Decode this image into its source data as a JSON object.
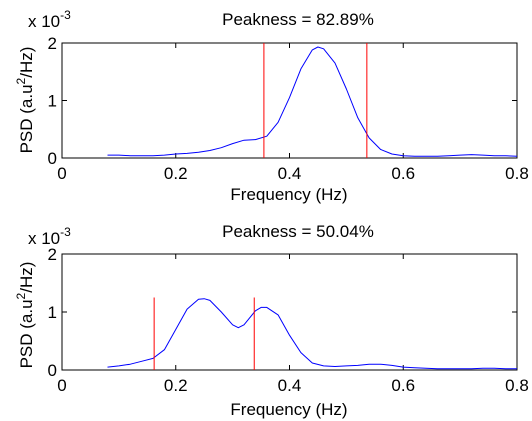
{
  "chart_data": [
    {
      "type": "line",
      "title": "Peakness = 82.89%",
      "xlabel": "Frequency (Hz)",
      "ylabel": {
        "pre": "PSD (a.u",
        "sup": "2",
        "post": "/Hz)"
      },
      "y_exponent": {
        "base": "x 10",
        "exp": "-3"
      },
      "xlim": [
        0,
        0.8
      ],
      "ylim": [
        0,
        2
      ],
      "x_ticks": [
        0,
        0.2,
        0.4,
        0.6,
        0.8
      ],
      "x_tick_labels": [
        "0",
        "0.2",
        "0.4",
        "0.6",
        "0.8"
      ],
      "y_ticks": [
        0,
        1,
        2
      ],
      "y_tick_labels": [
        "0",
        "1",
        "2"
      ],
      "grid": false,
      "series": [
        {
          "color": "#0000ff",
          "x": [
            0.08,
            0.1,
            0.12,
            0.14,
            0.16,
            0.18,
            0.2,
            0.22,
            0.24,
            0.26,
            0.28,
            0.3,
            0.32,
            0.34,
            0.36,
            0.38,
            0.4,
            0.42,
            0.44,
            0.45,
            0.46,
            0.48,
            0.5,
            0.52,
            0.54,
            0.56,
            0.58,
            0.6,
            0.62,
            0.64,
            0.66,
            0.68,
            0.7,
            0.72,
            0.74,
            0.76,
            0.78,
            0.8
          ],
          "y": [
            0.05,
            0.05,
            0.04,
            0.04,
            0.04,
            0.05,
            0.07,
            0.08,
            0.1,
            0.13,
            0.18,
            0.25,
            0.31,
            0.32,
            0.38,
            0.62,
            1.05,
            1.55,
            1.88,
            1.93,
            1.9,
            1.65,
            1.2,
            0.7,
            0.35,
            0.15,
            0.07,
            0.04,
            0.03,
            0.03,
            0.03,
            0.04,
            0.05,
            0.06,
            0.05,
            0.04,
            0.04,
            0.03
          ]
        }
      ],
      "markers": [
        {
          "x": 0.355,
          "ymax": 2.0,
          "color": "#ff0000"
        },
        {
          "x": 0.536,
          "ymax": 2.0,
          "color": "#ff0000"
        }
      ]
    },
    {
      "type": "line",
      "title": "Peakness = 50.04%",
      "xlabel": "Frequency (Hz)",
      "ylabel": {
        "pre": "PSD (a.u",
        "sup": "2",
        "post": "/Hz)"
      },
      "y_exponent": {
        "base": "x 10",
        "exp": "-3"
      },
      "xlim": [
        0,
        0.8
      ],
      "ylim": [
        0,
        2
      ],
      "x_ticks": [
        0,
        0.2,
        0.4,
        0.6,
        0.8
      ],
      "x_tick_labels": [
        "0",
        "0.2",
        "0.4",
        "0.6",
        "0.8"
      ],
      "y_ticks": [
        0,
        1,
        2
      ],
      "y_tick_labels": [
        "0",
        "1",
        "2"
      ],
      "grid": false,
      "series": [
        {
          "color": "#0000ff",
          "x": [
            0.08,
            0.1,
            0.12,
            0.14,
            0.16,
            0.18,
            0.2,
            0.22,
            0.24,
            0.25,
            0.26,
            0.28,
            0.3,
            0.31,
            0.32,
            0.34,
            0.35,
            0.36,
            0.38,
            0.4,
            0.42,
            0.44,
            0.46,
            0.48,
            0.5,
            0.52,
            0.54,
            0.56,
            0.58,
            0.6,
            0.62,
            0.64,
            0.66,
            0.68,
            0.7,
            0.72,
            0.74,
            0.76,
            0.78,
            0.8
          ],
          "y": [
            0.05,
            0.07,
            0.1,
            0.15,
            0.2,
            0.35,
            0.7,
            1.05,
            1.22,
            1.23,
            1.2,
            1.0,
            0.78,
            0.73,
            0.78,
            1.02,
            1.08,
            1.08,
            0.95,
            0.6,
            0.3,
            0.12,
            0.07,
            0.06,
            0.07,
            0.08,
            0.1,
            0.1,
            0.08,
            0.05,
            0.04,
            0.03,
            0.02,
            0.02,
            0.02,
            0.02,
            0.03,
            0.03,
            0.02,
            0.02
          ]
        }
      ],
      "markers": [
        {
          "x": 0.162,
          "ymax": 1.25,
          "color": "#ff0000"
        },
        {
          "x": 0.338,
          "ymax": 1.25,
          "color": "#ff0000"
        }
      ]
    }
  ]
}
